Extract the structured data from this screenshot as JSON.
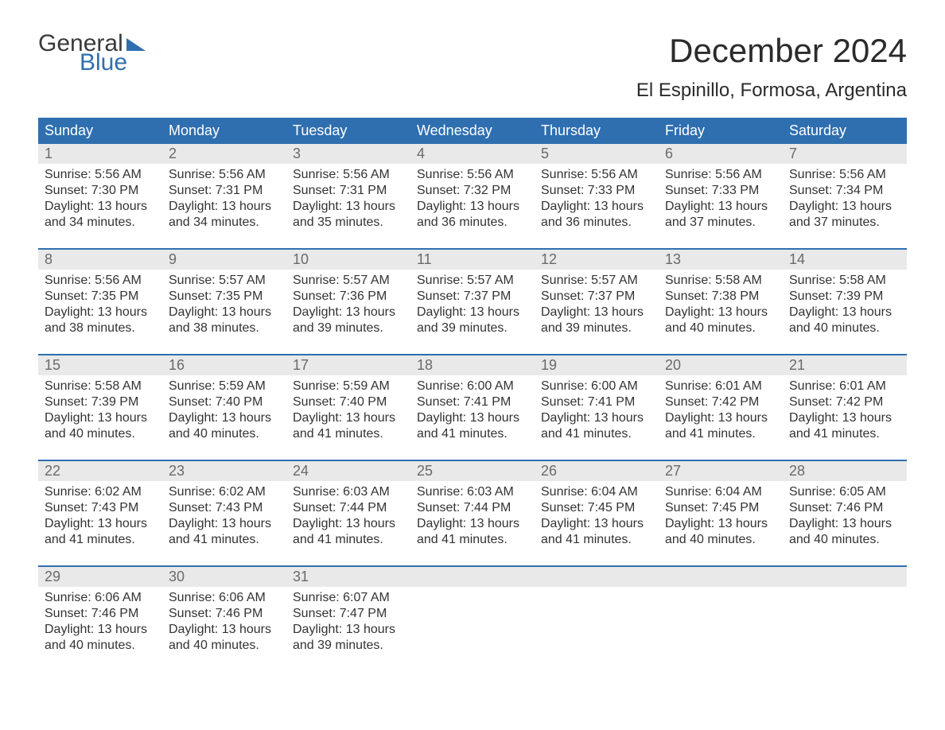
{
  "logo": {
    "word1": "General",
    "word2": "Blue"
  },
  "title": "December 2024",
  "location": "El Espinillo, Formosa, Argentina",
  "colors": {
    "header_bg": "#2f6fb0",
    "header_text": "#ffffff",
    "daynum_bg": "#e9e9e9",
    "daynum_text": "#6a6a6a",
    "body_text": "#333333",
    "page_bg": "#ffffff",
    "rule": "#2f6fb0"
  },
  "typography": {
    "title_fontsize": 42,
    "location_fontsize": 24,
    "header_fontsize": 18,
    "daynum_fontsize": 18,
    "cell_fontsize": 16
  },
  "day_labels": [
    "Sunday",
    "Monday",
    "Tuesday",
    "Wednesday",
    "Thursday",
    "Friday",
    "Saturday"
  ],
  "weeks": [
    {
      "days": [
        {
          "num": "1",
          "sunrise": "5:56 AM",
          "sunset": "7:30 PM",
          "daylight": "13 hours and 34 minutes."
        },
        {
          "num": "2",
          "sunrise": "5:56 AM",
          "sunset": "7:31 PM",
          "daylight": "13 hours and 34 minutes."
        },
        {
          "num": "3",
          "sunrise": "5:56 AM",
          "sunset": "7:31 PM",
          "daylight": "13 hours and 35 minutes."
        },
        {
          "num": "4",
          "sunrise": "5:56 AM",
          "sunset": "7:32 PM",
          "daylight": "13 hours and 36 minutes."
        },
        {
          "num": "5",
          "sunrise": "5:56 AM",
          "sunset": "7:33 PM",
          "daylight": "13 hours and 36 minutes."
        },
        {
          "num": "6",
          "sunrise": "5:56 AM",
          "sunset": "7:33 PM",
          "daylight": "13 hours and 37 minutes."
        },
        {
          "num": "7",
          "sunrise": "5:56 AM",
          "sunset": "7:34 PM",
          "daylight": "13 hours and 37 minutes."
        }
      ]
    },
    {
      "days": [
        {
          "num": "8",
          "sunrise": "5:56 AM",
          "sunset": "7:35 PM",
          "daylight": "13 hours and 38 minutes."
        },
        {
          "num": "9",
          "sunrise": "5:57 AM",
          "sunset": "7:35 PM",
          "daylight": "13 hours and 38 minutes."
        },
        {
          "num": "10",
          "sunrise": "5:57 AM",
          "sunset": "7:36 PM",
          "daylight": "13 hours and 39 minutes."
        },
        {
          "num": "11",
          "sunrise": "5:57 AM",
          "sunset": "7:37 PM",
          "daylight": "13 hours and 39 minutes."
        },
        {
          "num": "12",
          "sunrise": "5:57 AM",
          "sunset": "7:37 PM",
          "daylight": "13 hours and 39 minutes."
        },
        {
          "num": "13",
          "sunrise": "5:58 AM",
          "sunset": "7:38 PM",
          "daylight": "13 hours and 40 minutes."
        },
        {
          "num": "14",
          "sunrise": "5:58 AM",
          "sunset": "7:39 PM",
          "daylight": "13 hours and 40 minutes."
        }
      ]
    },
    {
      "days": [
        {
          "num": "15",
          "sunrise": "5:58 AM",
          "sunset": "7:39 PM",
          "daylight": "13 hours and 40 minutes."
        },
        {
          "num": "16",
          "sunrise": "5:59 AM",
          "sunset": "7:40 PM",
          "daylight": "13 hours and 40 minutes."
        },
        {
          "num": "17",
          "sunrise": "5:59 AM",
          "sunset": "7:40 PM",
          "daylight": "13 hours and 41 minutes."
        },
        {
          "num": "18",
          "sunrise": "6:00 AM",
          "sunset": "7:41 PM",
          "daylight": "13 hours and 41 minutes."
        },
        {
          "num": "19",
          "sunrise": "6:00 AM",
          "sunset": "7:41 PM",
          "daylight": "13 hours and 41 minutes."
        },
        {
          "num": "20",
          "sunrise": "6:01 AM",
          "sunset": "7:42 PM",
          "daylight": "13 hours and 41 minutes."
        },
        {
          "num": "21",
          "sunrise": "6:01 AM",
          "sunset": "7:42 PM",
          "daylight": "13 hours and 41 minutes."
        }
      ]
    },
    {
      "days": [
        {
          "num": "22",
          "sunrise": "6:02 AM",
          "sunset": "7:43 PM",
          "daylight": "13 hours and 41 minutes."
        },
        {
          "num": "23",
          "sunrise": "6:02 AM",
          "sunset": "7:43 PM",
          "daylight": "13 hours and 41 minutes."
        },
        {
          "num": "24",
          "sunrise": "6:03 AM",
          "sunset": "7:44 PM",
          "daylight": "13 hours and 41 minutes."
        },
        {
          "num": "25",
          "sunrise": "6:03 AM",
          "sunset": "7:44 PM",
          "daylight": "13 hours and 41 minutes."
        },
        {
          "num": "26",
          "sunrise": "6:04 AM",
          "sunset": "7:45 PM",
          "daylight": "13 hours and 41 minutes."
        },
        {
          "num": "27",
          "sunrise": "6:04 AM",
          "sunset": "7:45 PM",
          "daylight": "13 hours and 40 minutes."
        },
        {
          "num": "28",
          "sunrise": "6:05 AM",
          "sunset": "7:46 PM",
          "daylight": "13 hours and 40 minutes."
        }
      ]
    },
    {
      "days": [
        {
          "num": "29",
          "sunrise": "6:06 AM",
          "sunset": "7:46 PM",
          "daylight": "13 hours and 40 minutes."
        },
        {
          "num": "30",
          "sunrise": "6:06 AM",
          "sunset": "7:46 PM",
          "daylight": "13 hours and 40 minutes."
        },
        {
          "num": "31",
          "sunrise": "6:07 AM",
          "sunset": "7:47 PM",
          "daylight": "13 hours and 39 minutes."
        },
        {
          "num": "",
          "sunrise": "",
          "sunset": "",
          "daylight": ""
        },
        {
          "num": "",
          "sunrise": "",
          "sunset": "",
          "daylight": ""
        },
        {
          "num": "",
          "sunrise": "",
          "sunset": "",
          "daylight": ""
        },
        {
          "num": "",
          "sunrise": "",
          "sunset": "",
          "daylight": ""
        }
      ]
    }
  ],
  "labels": {
    "sunrise_prefix": "Sunrise: ",
    "sunset_prefix": "Sunset: ",
    "daylight_prefix": "Daylight: "
  }
}
